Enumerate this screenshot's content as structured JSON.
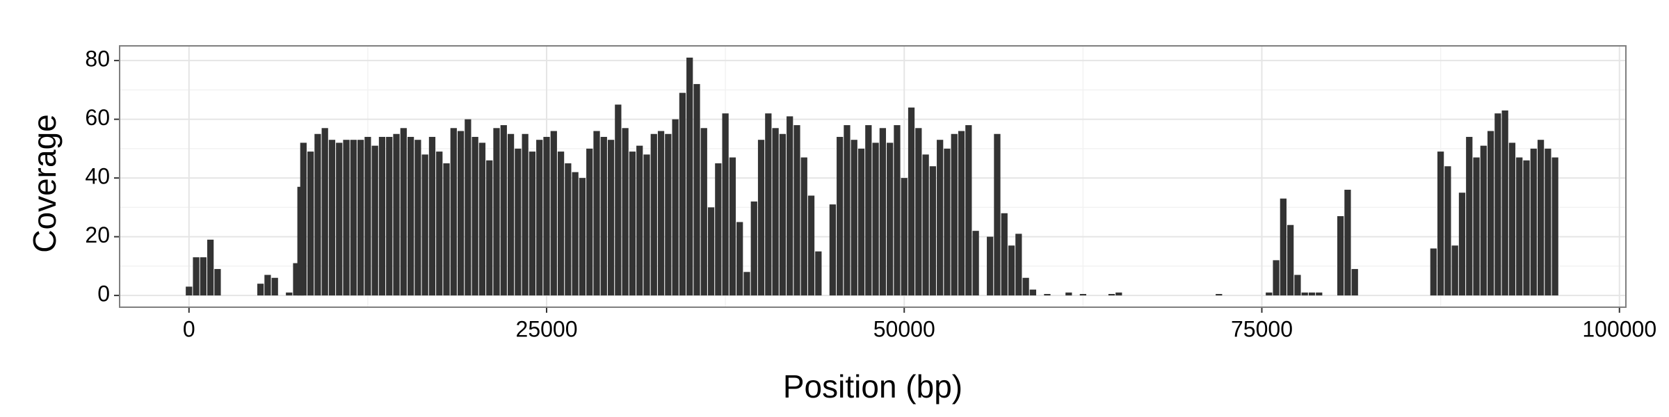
{
  "chart_data": {
    "type": "bar",
    "x_label": "Position (bp)",
    "y_label": "Coverage",
    "color": "#333333",
    "grid": true,
    "x": [
      0,
      500,
      1000,
      1500,
      2000,
      5000,
      5500,
      6000,
      7000,
      7500,
      7800,
      8000,
      8500,
      9000,
      9500,
      10000,
      10500,
      11000,
      11500,
      12000,
      12500,
      13000,
      13500,
      14000,
      14500,
      15000,
      15500,
      16000,
      16500,
      17000,
      17500,
      18000,
      18500,
      19000,
      19500,
      20000,
      20500,
      21000,
      21500,
      22000,
      22500,
      23000,
      23500,
      24000,
      24500,
      25000,
      25500,
      26000,
      26500,
      27000,
      27500,
      28000,
      28500,
      29000,
      29500,
      30000,
      30500,
      31000,
      31500,
      32000,
      32500,
      33000,
      33500,
      34000,
      34500,
      35000,
      35500,
      36000,
      36500,
      37000,
      37500,
      38000,
      38500,
      39000,
      39500,
      40000,
      40500,
      41000,
      41500,
      42000,
      42500,
      43000,
      43500,
      44000,
      45000,
      45500,
      46000,
      46500,
      47000,
      47500,
      48000,
      48500,
      49000,
      49500,
      50000,
      50500,
      51000,
      51500,
      52000,
      52500,
      53000,
      53500,
      54000,
      54500,
      55000,
      56000,
      56500,
      57000,
      57500,
      58000,
      58500,
      59000,
      60000,
      61500,
      62500,
      64500,
      65000,
      72000,
      75500,
      76000,
      76500,
      77000,
      77500,
      78000,
      78500,
      79000,
      80500,
      81000,
      81500,
      87000,
      87500,
      88000,
      88500,
      89000,
      89500,
      90000,
      90500,
      91000,
      91500,
      92000,
      92500,
      93000,
      93500,
      94000,
      94500,
      95000,
      95500
    ],
    "values": [
      3,
      13,
      13,
      19,
      9,
      4,
      7,
      6,
      1,
      11,
      37,
      52,
      49,
      55,
      57,
      53,
      52,
      53,
      53,
      53,
      54,
      51,
      54,
      54,
      55,
      57,
      54,
      53,
      48,
      54,
      49,
      45,
      57,
      56,
      60,
      54,
      52,
      46,
      57,
      58,
      55,
      50,
      55,
      49,
      53,
      54,
      56,
      49,
      45,
      42,
      40,
      50,
      56,
      54,
      53,
      65,
      57,
      49,
      51,
      48,
      55,
      56,
      55,
      60,
      69,
      81,
      72,
      57,
      30,
      45,
      62,
      47,
      25,
      8,
      32,
      53,
      62,
      57,
      55,
      61,
      58,
      47,
      34,
      15,
      31,
      54,
      58,
      53,
      50,
      58,
      52,
      57,
      52,
      58,
      40,
      64,
      57,
      48,
      44,
      53,
      50,
      55,
      56,
      58,
      22,
      20,
      55,
      28,
      17,
      21,
      6,
      2,
      0.5,
      1,
      0.5,
      0.5,
      1,
      0.5,
      1,
      12,
      33,
      24,
      7,
      1,
      1,
      1,
      27,
      36,
      9,
      16,
      49,
      44,
      17,
      35,
      54,
      47,
      51,
      56,
      62,
      63,
      52,
      47,
      46,
      50,
      53,
      50,
      47
    ],
    "xlim": [
      -4850,
      100450
    ],
    "xticks": [
      0,
      25000,
      50000,
      75000,
      100000
    ],
    "ylim": [
      -4,
      85
    ],
    "yticks": [
      0,
      20,
      40,
      60,
      80
    ]
  }
}
